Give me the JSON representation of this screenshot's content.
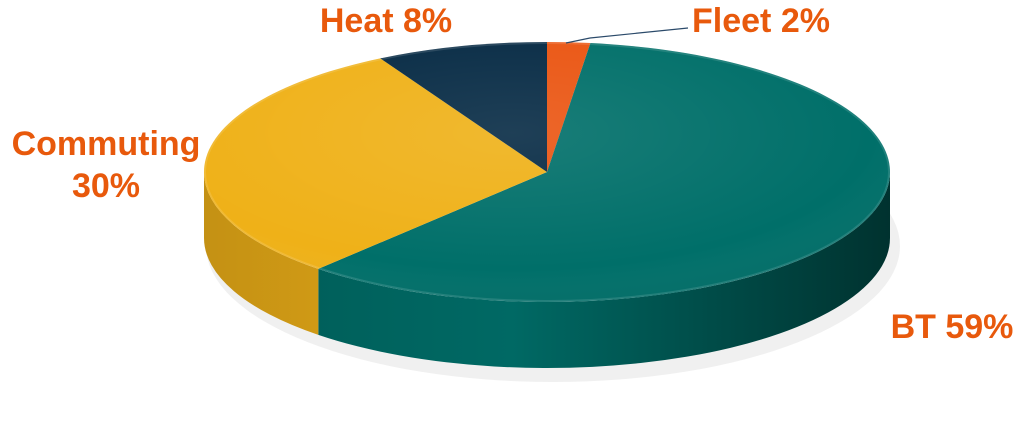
{
  "chart_data": {
    "type": "pie",
    "title": "",
    "legend": "none",
    "slices": [
      {
        "label": "BT 59%",
        "value": 59,
        "color": "#006f69"
      },
      {
        "label": "Commuting 30%",
        "value": 30,
        "color": "#efb118"
      },
      {
        "label": "Heat 8%",
        "value": 8,
        "color": "#062a44"
      },
      {
        "label": "Fleet 2%",
        "value": 2,
        "color": "#ea5512"
      }
    ],
    "label_color": "#e8590c"
  }
}
